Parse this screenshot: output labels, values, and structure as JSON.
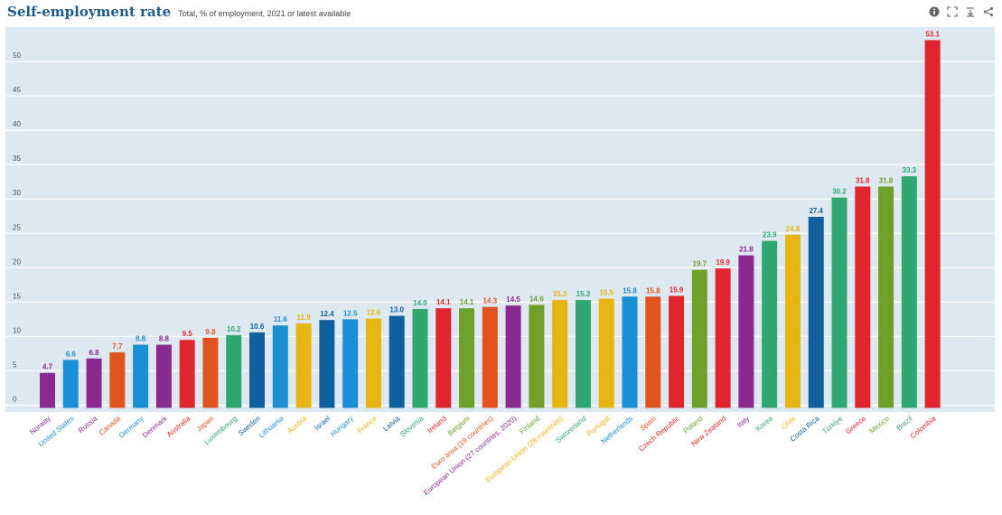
{
  "header": {
    "title": "Self-employment rate",
    "subtitle": "Total, % of employment, 2021 or latest available"
  },
  "toolbar": {
    "icons": [
      "info-icon",
      "fullscreen-icon",
      "download-icon",
      "share-icon"
    ]
  },
  "colors": {
    "plot_background": "#dde8f1",
    "gridline": "#ffffff",
    "purple": "#8b2a8e",
    "blue": "#1b8fd6",
    "orange": "#e2541f",
    "red": "#e0262c",
    "green": "#2ea86f",
    "navy": "#10609e",
    "yellow": "#e6b512",
    "olive": "#6ea02a"
  },
  "chart_data": {
    "type": "bar",
    "title": "Self-employment rate",
    "subtitle": "Total, % of employment, 2021 or latest available",
    "xlabel": "",
    "ylabel": "",
    "ylim": [
      -2,
      55
    ],
    "yticks": [
      0,
      5,
      10,
      15,
      20,
      25,
      30,
      35,
      40,
      45,
      50
    ],
    "grid": true,
    "categories": [
      "Norway",
      "United States",
      "Russia",
      "Canada",
      "Germany",
      "Denmark",
      "Australia",
      "Japan",
      "Luxembourg",
      "Sweden",
      "Lithuania",
      "Austria",
      "Israel",
      "Hungary",
      "France",
      "Latvia",
      "Slovenia",
      "Ireland",
      "Belgium",
      "Euro area (19 countries)",
      "European Union (27 countries, 2020)",
      "Finland",
      "European Union (28 countries)",
      "Switzerland",
      "Portugal",
      "Netherlands",
      "Spain",
      "Czech Republic",
      "Poland",
      "New Zealand",
      "Italy",
      "Korea",
      "Chile",
      "Costa Rica",
      "Türkiye",
      "Greece",
      "Mexico",
      "Brazil",
      "Colombia"
    ],
    "values": [
      4.7,
      6.6,
      6.8,
      7.7,
      8.8,
      8.8,
      9.5,
      9.8,
      10.2,
      10.6,
      11.6,
      11.9,
      12.4,
      12.5,
      12.6,
      13.0,
      14.0,
      14.1,
      14.1,
      14.3,
      14.5,
      14.6,
      15.3,
      15.3,
      15.5,
      15.8,
      15.8,
      15.9,
      19.7,
      19.9,
      21.8,
      23.9,
      24.8,
      27.4,
      30.2,
      31.8,
      31.8,
      33.3,
      53.1
    ],
    "value_labels": [
      "4.7",
      "6.6",
      "6.8",
      "7.7",
      "8.8",
      "8.8",
      "9.5",
      "9.8",
      "10.2",
      "10.6",
      "11.6",
      "11.9",
      "12.4",
      "12.5",
      "12.6",
      "13.0",
      "14.0",
      "14.1",
      "14.1",
      "14.3",
      "14.5",
      "14.6",
      "15.3",
      "15.3",
      "15.5",
      "15.8",
      "15.8",
      "15.9",
      "19.7",
      "19.9",
      "21.8",
      "23.9",
      "24.8",
      "27.4",
      "30.2",
      "31.8",
      "31.8",
      "33.3",
      "53.1"
    ],
    "bar_colors": [
      "#8b2a8e",
      "#1b8fd6",
      "#8b2a8e",
      "#e2541f",
      "#1b8fd6",
      "#8b2a8e",
      "#e0262c",
      "#e2541f",
      "#2ea86f",
      "#10609e",
      "#1b8fd6",
      "#e6b512",
      "#10609e",
      "#1b8fd6",
      "#e6b512",
      "#10609e",
      "#2ea86f",
      "#e0262c",
      "#6ea02a",
      "#e2541f",
      "#8b2a8e",
      "#6ea02a",
      "#e6b512",
      "#2ea86f",
      "#e6b512",
      "#1b8fd6",
      "#e2541f",
      "#e0262c",
      "#6ea02a",
      "#e0262c",
      "#8b2a8e",
      "#2ea86f",
      "#e6b512",
      "#10609e",
      "#2ea86f",
      "#e0262c",
      "#6ea02a",
      "#2ea86f",
      "#e0262c"
    ]
  }
}
